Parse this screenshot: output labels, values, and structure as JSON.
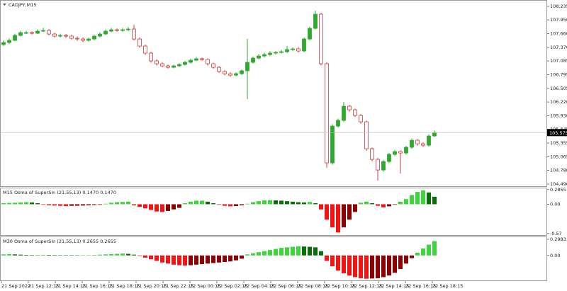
{
  "chart_data": [
    {
      "type": "candlestick",
      "title": "CADJPY,M15",
      "open": [
        107.43,
        107.474,
        107.519,
        107.623,
        107.683,
        107.683,
        107.668,
        107.713,
        107.728,
        107.653,
        107.608,
        107.623,
        107.608,
        107.563,
        107.548,
        107.519,
        107.548,
        107.608,
        107.653,
        107.713,
        107.742,
        107.728,
        107.742,
        107.757,
        107.548,
        107.399,
        107.25,
        107.086,
        107.026,
        106.981,
        106.951,
        106.981,
        107.011,
        107.056,
        107.101,
        107.131,
        107.116,
        107.026,
        106.951,
        106.862,
        106.817,
        106.787,
        106.817,
        106.877,
        107.056,
        107.145,
        107.19,
        107.22,
        107.25,
        107.265,
        107.28,
        107.325,
        107.34,
        107.295,
        107.548,
        107.772,
        108.071,
        107.026,
        104.936,
        105.713,
        105.832,
        106.131,
        106.056,
        105.936,
        105.802,
        105.235,
        105.011,
        104.787,
        104.966,
        105.116,
        105.175,
        105.145,
        105.265,
        105.414,
        105.339,
        105.31,
        105.504
      ],
      "high": [
        107.52,
        107.56,
        107.66,
        107.72,
        107.72,
        107.71,
        107.75,
        107.78,
        107.76,
        107.68,
        107.66,
        107.65,
        107.64,
        107.6,
        107.58,
        107.58,
        107.64,
        107.69,
        107.75,
        107.78,
        107.77,
        107.78,
        107.8,
        107.85,
        107.58,
        107.43,
        107.28,
        107.12,
        107.06,
        107.01,
        107.01,
        107.04,
        107.09,
        107.13,
        107.17,
        107.16,
        107.14,
        107.05,
        106.98,
        106.89,
        106.85,
        106.85,
        106.91,
        107.55,
        107.18,
        107.23,
        107.26,
        107.29,
        107.3,
        107.32,
        107.4,
        107.37,
        107.38,
        107.58,
        107.81,
        108.145,
        108.1,
        107.06,
        105.75,
        105.87,
        106.22,
        106.16,
        106.08,
        105.97,
        105.83,
        105.26,
        105.04,
        105.0,
        105.15,
        105.21,
        105.2,
        105.3,
        105.45,
        105.44,
        105.37,
        105.54,
        105.62
      ],
      "low": [
        107.4,
        107.44,
        107.5,
        107.6,
        107.65,
        107.64,
        107.65,
        107.69,
        107.62,
        107.58,
        107.58,
        107.57,
        107.53,
        107.51,
        107.48,
        107.49,
        107.52,
        107.58,
        107.63,
        107.69,
        107.7,
        107.7,
        107.71,
        107.52,
        107.36,
        107.21,
        107.05,
        106.99,
        106.95,
        106.92,
        106.93,
        106.96,
        106.99,
        107.03,
        107.08,
        107.09,
        106.99,
        106.92,
        106.83,
        106.78,
        106.75,
        106.76,
        106.79,
        106.28,
        107.03,
        107.12,
        107.16,
        107.19,
        107.22,
        107.24,
        107.25,
        107.29,
        107.26,
        107.27,
        107.52,
        107.75,
        106.99,
        104.832,
        104.9,
        105.68,
        105.8,
        106.01,
        105.9,
        105.76,
        105.19,
        104.97,
        104.563,
        104.75,
        104.93,
        105.08,
        104.713,
        105.11,
        105.23,
        105.3,
        105.27,
        105.28,
        105.48
      ],
      "close": [
        107.474,
        107.519,
        107.623,
        107.683,
        107.683,
        107.668,
        107.713,
        107.728,
        107.653,
        107.608,
        107.623,
        107.608,
        107.563,
        107.548,
        107.519,
        107.548,
        107.608,
        107.653,
        107.713,
        107.742,
        107.728,
        107.742,
        107.757,
        107.548,
        107.399,
        107.25,
        107.086,
        107.026,
        106.981,
        106.951,
        106.981,
        107.011,
        107.056,
        107.101,
        107.131,
        107.116,
        107.026,
        106.951,
        106.862,
        106.817,
        106.787,
        106.817,
        106.877,
        107.056,
        107.145,
        107.19,
        107.22,
        107.25,
        107.265,
        107.28,
        107.325,
        107.34,
        107.295,
        107.548,
        107.772,
        108.071,
        107.026,
        104.936,
        105.713,
        105.832,
        106.131,
        106.056,
        105.936,
        105.802,
        105.235,
        105.011,
        104.787,
        104.966,
        105.116,
        105.175,
        105.145,
        105.265,
        105.414,
        105.339,
        105.31,
        105.504,
        105.575
      ],
      "ylim": [
        104.445,
        108.355
      ],
      "yticks": [
        108.235,
        {
          "value": 107.95,
          "label": "107.950"
        },
        {
          "value": 107.66,
          "label": "107.660"
        },
        {
          "value": 107.37,
          "label": "107.370"
        },
        107.085,
        106.795,
        106.505,
        {
          "value": 106.22,
          "label": "106.220"
        },
        {
          "value": 105.93,
          "label": "105.930"
        },
        105.645,
        105.355,
        105.065,
        {
          "value": 104.78,
          "label": "104.780"
        },
        {
          "value": 104.49,
          "label": "104.490"
        }
      ],
      "last_price": 105.575,
      "colors": {
        "up": "#2fa82f",
        "down": "#d23a3a"
      }
    },
    {
      "type": "bar",
      "title": "M15 Osma of SuperSin (21,55,13) 0.1470 0.1470",
      "values": [
        0.02,
        0.025,
        0.03,
        0.035,
        0.04,
        0.035,
        0.02,
        -0.01,
        -0.02,
        -0.025,
        -0.03,
        -0.035,
        -0.03,
        -0.028,
        -0.025,
        -0.02,
        -0.015,
        -0.01,
        0.01,
        0.03,
        0.04,
        0.045,
        0.05,
        -0.02,
        -0.05,
        -0.08,
        -0.11,
        -0.14,
        -0.15,
        -0.13,
        -0.1,
        -0.07,
        0.02,
        0.05,
        0.07,
        0.07,
        0.05,
        0.02,
        -0.01,
        -0.03,
        -0.04,
        -0.035,
        -0.02,
        0.01,
        0.04,
        0.06,
        0.075,
        0.08,
        0.075,
        0.07,
        0.06,
        0.05,
        0.04,
        0.035,
        0.045,
        0.02,
        -0.1,
        -0.3,
        -0.45,
        -0.55,
        -0.45,
        -0.3,
        -0.15,
        0.03,
        0.05,
        0.02,
        -0.03,
        -0.06,
        -0.04,
        -0.01,
        0.05,
        0.1,
        0.18,
        0.24,
        0.27,
        0.23,
        0.147
      ],
      "ylim": [
        -0.6,
        0.31
      ],
      "yticks": [
        0.2855,
        {
          "value": 0,
          "label": "0.00"
        },
        -0.57
      ],
      "palette": {
        "rising_positive": "#3dd43d",
        "falling_positive": "#0a6e0a",
        "falling_negative": "#f01414",
        "rising_negative": "#8b0000"
      }
    },
    {
      "type": "bar",
      "title": "M30 Osma of SuperSin (21,55,13) 0.2655 0.2655",
      "values": [
        0.02,
        0.025,
        0.02,
        0.015,
        0.01,
        0.008,
        0.01,
        0.012,
        0.01,
        0.008,
        0.006,
        0.005,
        0.004,
        0.003,
        0.004,
        0.006,
        0.01,
        0.015,
        0.02,
        0.025,
        0.03,
        0.035,
        0.03,
        0.015,
        -0.01,
        -0.04,
        -0.07,
        -0.1,
        -0.13,
        -0.15,
        -0.17,
        -0.18,
        -0.185,
        -0.18,
        -0.17,
        -0.16,
        -0.15,
        -0.14,
        -0.13,
        -0.12,
        -0.11,
        -0.09,
        -0.06,
        0.02,
        0.04,
        0.06,
        0.08,
        0.1,
        0.12,
        0.14,
        0.15,
        0.16,
        0.17,
        0.165,
        0.16,
        0.15,
        0.08,
        -0.1,
        -0.2,
        -0.28,
        -0.33,
        -0.37,
        -0.4,
        -0.42,
        -0.43,
        -0.425,
        -0.42,
        -0.4,
        -0.37,
        -0.32,
        -0.25,
        -0.15,
        -0.05,
        0.05,
        0.13,
        0.2,
        0.2655
      ],
      "ylim": [
        -0.46,
        0.337
      ],
      "yticks": [
        0.2983,
        {
          "value": 0,
          "label": "0.00"
        }
      ],
      "palette": {
        "rising_positive": "#3dd43d",
        "falling_positive": "#0a6e0a",
        "falling_negative": "#f01414",
        "rising_negative": "#8b0000"
      }
    }
  ],
  "time_axis_labels": [
    "21 Sep 2022",
    "21 Sep 12:15",
    "21 Sep 14:15",
    "21 Sep 16:15",
    "21 Sep 18:15",
    "21 Sep 20:15",
    "21 Sep 22:15",
    "22 Sep 00:15",
    "22 Sep 02:15",
    "22 Sep 04:15",
    "22 Sep 06:15",
    "22 Sep 08:15",
    "22 Sep 10:15",
    "22 Sep 12:15",
    "22 Sep 14:15",
    "22 Sep 16:15",
    "22 Sep 18:15"
  ]
}
